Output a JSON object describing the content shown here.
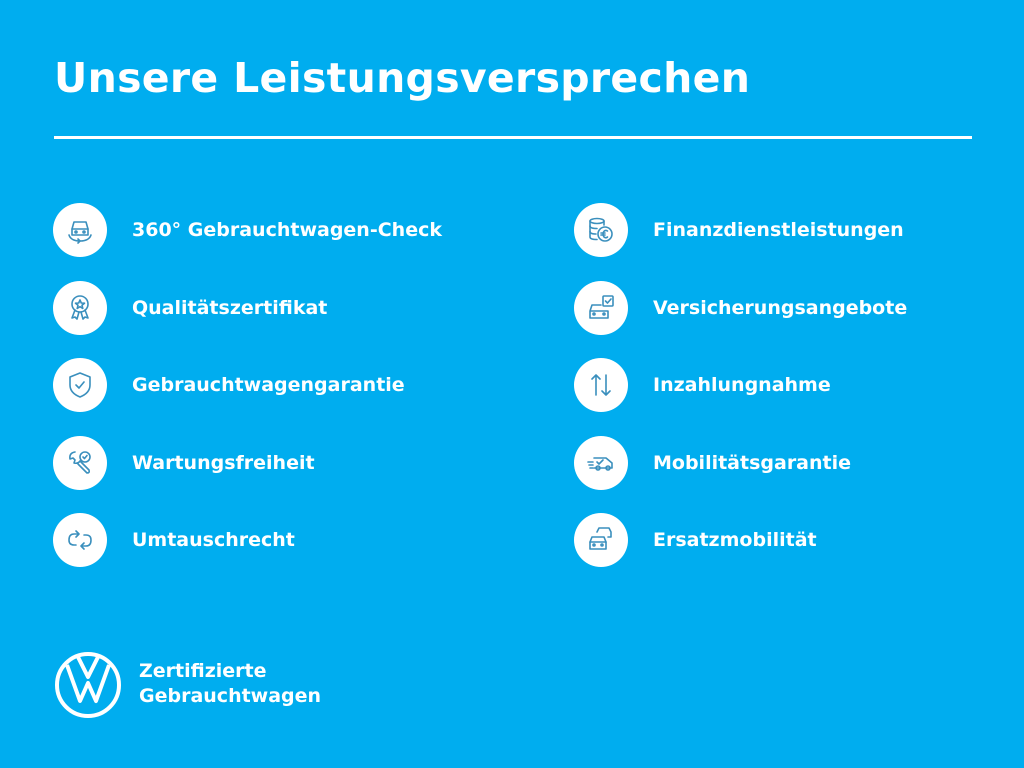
{
  "title": "Unsere Leistungsversprechen",
  "left_items": [
    {
      "label": "360° Gebrauchtwagen-Check",
      "icon": "car-rotate-icon"
    },
    {
      "label": "Qualitätszertifikat",
      "icon": "award-badge-icon"
    },
    {
      "label": "Gebrauchtwagengarantie",
      "icon": "shield-check-icon"
    },
    {
      "label": "Wartungsfreiheit",
      "icon": "wrench-check-icon"
    },
    {
      "label": "Umtauschrecht",
      "icon": "exchange-arrows-icon"
    }
  ],
  "right_items": [
    {
      "label": "Finanzdienstleistungen",
      "icon": "coins-euro-icon"
    },
    {
      "label": "Versicherungsangebote",
      "icon": "car-insurance-icon"
    },
    {
      "label": "Inzahlungnahme",
      "icon": "up-down-arrows-icon"
    },
    {
      "label": "Mobilitätsgarantie",
      "icon": "tow-truck-icon"
    },
    {
      "label": "Ersatzmobilität",
      "icon": "replacement-cars-icon"
    }
  ],
  "brand": {
    "line1": "Zertifizierte",
    "line2": "Gebrauchtwagen",
    "logo": "VW"
  },
  "colors": {
    "background": "#00adef",
    "foreground": "#ffffff",
    "icon_stroke": "#3a8fbd"
  }
}
